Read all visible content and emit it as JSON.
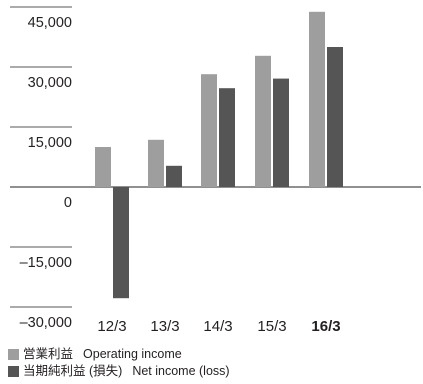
{
  "chart_data": {
    "type": "bar",
    "categories": [
      "12/3",
      "13/3",
      "14/3",
      "15/3",
      "16/3"
    ],
    "highlight_category": "16/3",
    "series": [
      {
        "name": "営業利益 Operating income",
        "color": "#9e9e9e",
        "values": [
          10000,
          11800,
          28200,
          32800,
          43800
        ]
      },
      {
        "name": "当期純利益(損失) Net income (loss)",
        "color": "#555555",
        "values": [
          -27800,
          5300,
          24700,
          27100,
          35000
        ]
      }
    ],
    "y_ticks": [
      "45,000",
      "30,000",
      "15,000",
      "0",
      "–15,000",
      "–30,000"
    ],
    "y_tick_values": [
      45000,
      30000,
      15000,
      0,
      -15000,
      -30000
    ],
    "ylim": [
      -30000,
      45000
    ],
    "title": "",
    "xlabel": "",
    "ylabel": "",
    "grid": false,
    "legend_position": "bottom-left"
  },
  "legend": {
    "items": [
      {
        "jp": "営業利益",
        "en": "Operating income",
        "color": "#9e9e9e"
      },
      {
        "jp": "当期純利益 (損失)",
        "en": "Net income (loss)",
        "color": "#555555"
      }
    ]
  }
}
